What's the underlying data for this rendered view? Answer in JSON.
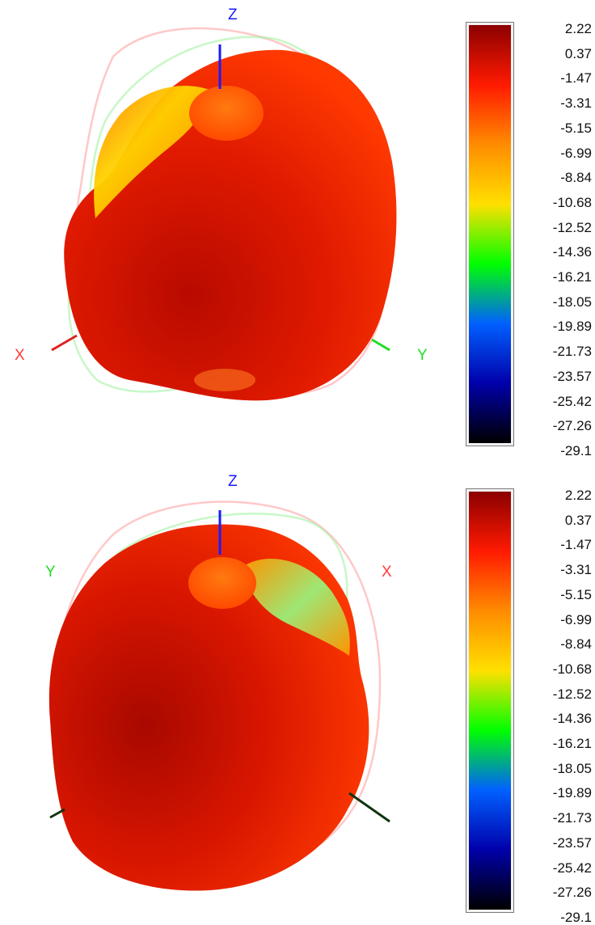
{
  "chart_data": [
    {
      "type": "heatmap",
      "title": "",
      "axes": {
        "z": {
          "label": "Z",
          "color": "#1a1aff"
        },
        "x": {
          "label": "X",
          "color": "#ff3b3b"
        },
        "y": {
          "label": "Y",
          "color": "#22dd22"
        }
      },
      "colorbar": {
        "min": -29.1,
        "max": 2.22,
        "ticks": [
          "2.22",
          "0.37",
          "-1.47",
          "-3.31",
          "-5.15",
          "-6.99",
          "-8.84",
          "-10.68",
          "-12.52",
          "-14.36",
          "-16.21",
          "-18.05",
          "-19.89",
          "-21.73",
          "-23.57",
          "-25.42",
          "-27.26",
          "-29.1"
        ],
        "colors": [
          "#8b0000",
          "#ff1a00",
          "#ff8c00",
          "#ffe000",
          "#00ff00",
          "#0060ff",
          "#0000aa",
          "#000000"
        ]
      }
    },
    {
      "type": "heatmap",
      "title": "",
      "axes": {
        "z": {
          "label": "Z",
          "color": "#1a1aff"
        },
        "y": {
          "label": "Y",
          "color": "#22dd22"
        },
        "x": {
          "label": "X",
          "color": "#ff3b3b"
        }
      },
      "colorbar": {
        "min": -29.1,
        "max": 2.22,
        "ticks": [
          "2.22",
          "0.37",
          "-1.47",
          "-3.31",
          "-5.15",
          "-6.99",
          "-8.84",
          "-10.68",
          "-12.52",
          "-14.36",
          "-16.21",
          "-18.05",
          "-19.89",
          "-21.73",
          "-23.57",
          "-25.42",
          "-27.26",
          "-29.1"
        ],
        "colors": [
          "#8b0000",
          "#ff1a00",
          "#ff8c00",
          "#ffe000",
          "#00ff00",
          "#0060ff",
          "#0000aa",
          "#000000"
        ]
      }
    }
  ]
}
